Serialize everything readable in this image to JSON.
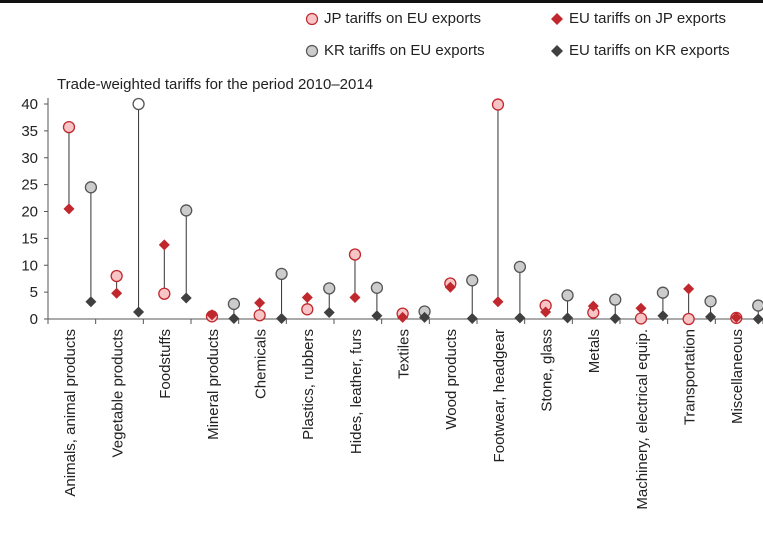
{
  "chart_data": {
    "type": "scatter",
    "subtitle": "Trade-weighted tariffs for the period 2010–2014",
    "categories": [
      "Animals, animal products",
      "Vegetable products",
      "Foodstuffs",
      "Mineral products",
      "Chemicals",
      "Plastics, rubbers",
      "Hides, leather, furs",
      "Textiles",
      "Wood products",
      "Footwear, headgear",
      "Stone, glass",
      "Metals",
      "Machinery, electrical equip.",
      "Transportation",
      "Miscellaneous"
    ],
    "ylim": [
      0,
      40
    ],
    "yticks": [
      0,
      5,
      10,
      15,
      20,
      25,
      30,
      35,
      40
    ],
    "legend_position": "top-right",
    "series": [
      {
        "name": "JP tariffs on EU exports",
        "marker": "circle",
        "fill": "#f7c5c5",
        "stroke": "#c0282e",
        "values": [
          35.7,
          8.0,
          4.7,
          0.5,
          0.7,
          1.8,
          12.0,
          1.0,
          6.6,
          39.9,
          2.5,
          1.2,
          0.1,
          0.0,
          0.2
        ]
      },
      {
        "name": "EU tariffs on JP exports",
        "marker": "diamond",
        "fill": "#c0282e",
        "stroke": "#c0282e",
        "values": [
          20.5,
          4.8,
          13.8,
          0.8,
          3.0,
          4.0,
          4.0,
          0.3,
          5.9,
          3.2,
          1.3,
          2.4,
          2.0,
          5.6,
          0.3
        ]
      },
      {
        "name": "KR tariffs on EU exports",
        "marker": "circle",
        "fill": "#cccccc",
        "stroke": "#555555",
        "values": [
          24.5,
          40.0,
          20.2,
          2.8,
          8.4,
          5.7,
          5.8,
          1.4,
          7.2,
          9.7,
          4.4,
          3.6,
          4.9,
          3.3,
          2.5
        ]
      },
      {
        "name": "EU tariffs on KR exports",
        "marker": "diamond",
        "fill": "#404040",
        "stroke": "#404040",
        "values": [
          3.2,
          1.3,
          3.9,
          0.1,
          0.1,
          1.2,
          0.6,
          0.3,
          0.1,
          0.2,
          0.2,
          0.1,
          0.6,
          0.4,
          0.0
        ]
      }
    ],
    "open_markers": [
      {
        "series": "KR tariffs on EU exports",
        "category": "Vegetable products"
      }
    ]
  },
  "icons": {
    "circle": "circle-marker-icon",
    "diamond": "diamond-marker-icon"
  }
}
